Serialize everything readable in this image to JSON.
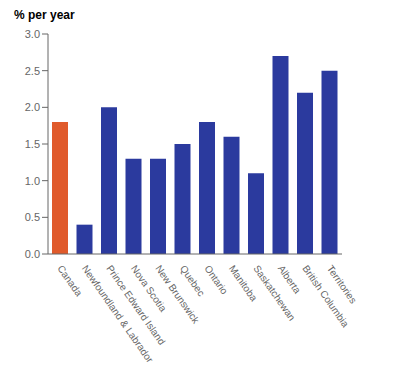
{
  "chart_data": {
    "type": "bar",
    "ylabel": "% per year",
    "categories": [
      "Canada",
      "Newfoundland & Labrador",
      "Prince Edward Island",
      "Nova Scotia",
      "New Brunswick",
      "Quebec",
      "Ontario",
      "Manitoba",
      "Saskatchewan",
      "Alberta",
      "British Columbia",
      "Territories"
    ],
    "values": [
      1.8,
      0.4,
      2.0,
      1.3,
      1.3,
      1.5,
      1.8,
      1.6,
      1.1,
      2.7,
      2.2,
      2.5
    ],
    "colors": [
      "#E05A2B",
      "#2B3A9E",
      "#2B3A9E",
      "#2B3A9E",
      "#2B3A9E",
      "#2B3A9E",
      "#2B3A9E",
      "#2B3A9E",
      "#2B3A9E",
      "#2B3A9E",
      "#2B3A9E",
      "#2B3A9E"
    ],
    "ylim": [
      0.0,
      3.0
    ],
    "yticks": [
      {
        "value": 0.0,
        "label": "0.0"
      },
      0.5,
      {
        "value": 1.0,
        "label": "1.0"
      },
      1.5,
      {
        "value": 2.0,
        "label": "2.0"
      },
      2.5,
      {
        "value": 3.0,
        "label": "3.0"
      }
    ],
    "grid": false
  }
}
